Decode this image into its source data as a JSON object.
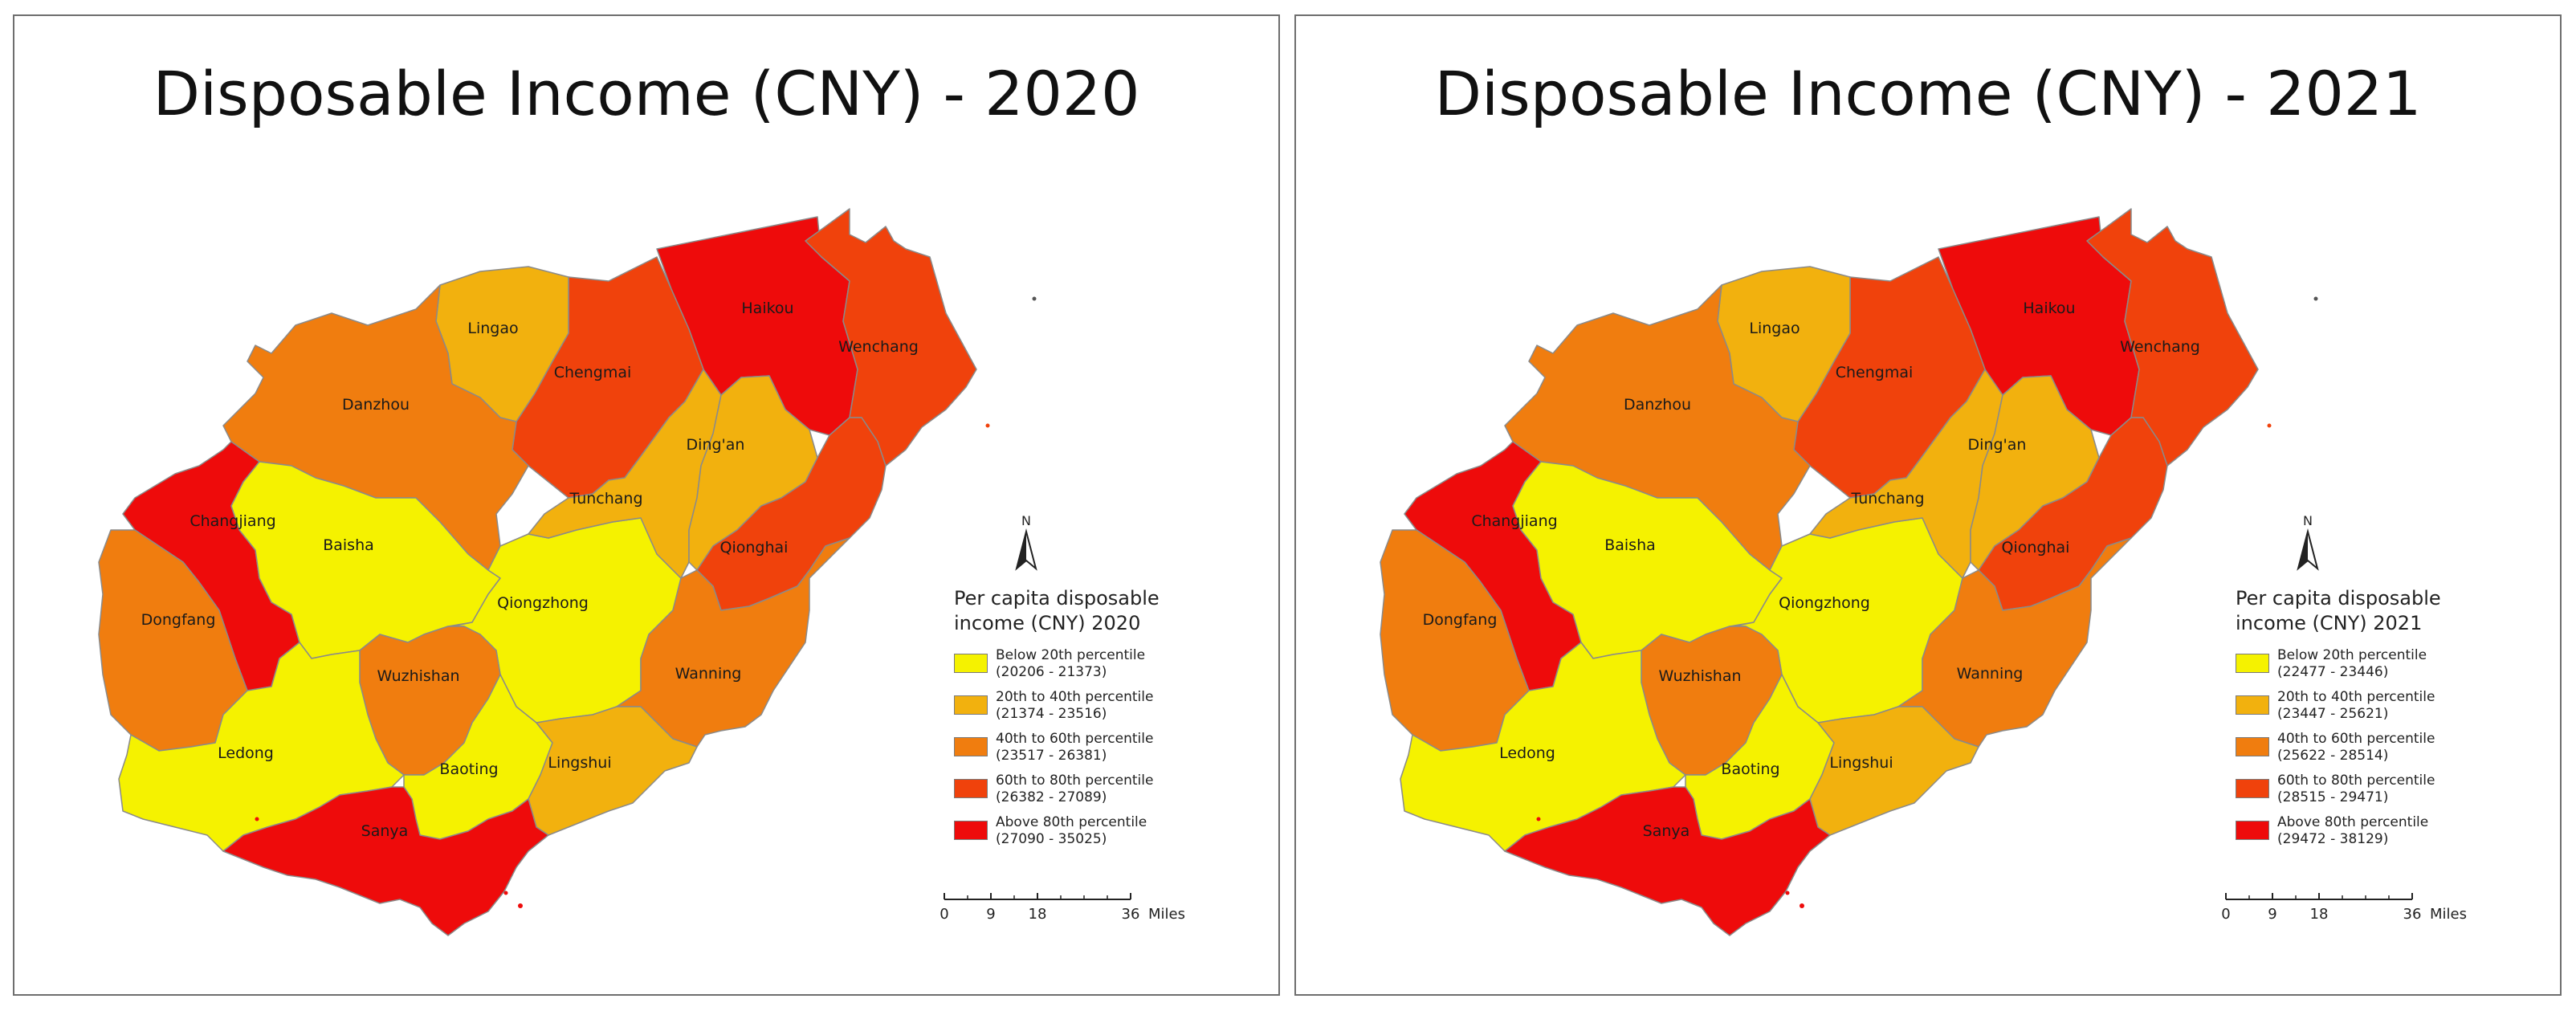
{
  "maps": [
    {
      "title": "Disposable Income (CNY) - 2020",
      "legend": {
        "title_line1": "Per capita disposable",
        "title_line2": "income (CNY) 2020",
        "classes": [
          {
            "label": "Below 20th percentile",
            "range": "(20206 - 21373)",
            "color": "#f5f200"
          },
          {
            "label": "20th to 40th percentile",
            "range": "(21374 - 23516)",
            "color": "#f2b10e"
          },
          {
            "label": "40th to 60th percentile",
            "range": "(23517 - 26381)",
            "color": "#f07d0f"
          },
          {
            "label": "60th to 80th percentile",
            "range": "(26382 - 27089)",
            "color": "#f0420c"
          },
          {
            "label": "Above 80th percentile",
            "range": "(27090 - 35025)",
            "color": "#ee0b0b"
          }
        ]
      },
      "regions": [
        {
          "name": "Haikou",
          "class": 4
        },
        {
          "name": "Wenchang",
          "class": 3
        },
        {
          "name": "Chengmai",
          "class": 3
        },
        {
          "name": "Lingao",
          "class": 1
        },
        {
          "name": "Danzhou",
          "class": 2
        },
        {
          "name": "Changjiang",
          "class": 4
        },
        {
          "name": "Baisha",
          "class": 0
        },
        {
          "name": "Qiongzhong",
          "class": 0
        },
        {
          "name": "Tunchang",
          "class": 1
        },
        {
          "name": "Ding'an",
          "class": 1
        },
        {
          "name": "Qionghai",
          "class": 3
        },
        {
          "name": "Dongfang",
          "class": 2
        },
        {
          "name": "Wuzhishan",
          "class": 2
        },
        {
          "name": "Wanning",
          "class": 2
        },
        {
          "name": "Ledong",
          "class": 0
        },
        {
          "name": "Baoting",
          "class": 0
        },
        {
          "name": "Lingshui",
          "class": 1
        },
        {
          "name": "Sanya",
          "class": 4
        }
      ],
      "north_label": "N",
      "scale": {
        "ticks": [
          "0",
          "9",
          "18",
          "36"
        ],
        "unit": "Miles"
      }
    },
    {
      "title": "Disposable Income (CNY) - 2021",
      "legend": {
        "title_line1": "Per capita disposable",
        "title_line2": "income (CNY) 2021",
        "classes": [
          {
            "label": "Below 20th percentile",
            "range": "(22477 - 23446)",
            "color": "#f5f200"
          },
          {
            "label": "20th to 40th percentile",
            "range": "(23447 - 25621)",
            "color": "#f2b10e"
          },
          {
            "label": "40th to 60th percentile",
            "range": "(25622 - 28514)",
            "color": "#f07d0f"
          },
          {
            "label": "60th to 80th percentile",
            "range": "(28515 - 29471)",
            "color": "#f0420c"
          },
          {
            "label": "Above 80th percentile",
            "range": "(29472 - 38129)",
            "color": "#ee0b0b"
          }
        ]
      },
      "regions": [
        {
          "name": "Haikou",
          "class": 4
        },
        {
          "name": "Wenchang",
          "class": 3
        },
        {
          "name": "Chengmai",
          "class": 3
        },
        {
          "name": "Lingao",
          "class": 1
        },
        {
          "name": "Danzhou",
          "class": 2
        },
        {
          "name": "Changjiang",
          "class": 4
        },
        {
          "name": "Baisha",
          "class": 0
        },
        {
          "name": "Qiongzhong",
          "class": 0
        },
        {
          "name": "Tunchang",
          "class": 1
        },
        {
          "name": "Ding'an",
          "class": 1
        },
        {
          "name": "Qionghai",
          "class": 3
        },
        {
          "name": "Dongfang",
          "class": 2
        },
        {
          "name": "Wuzhishan",
          "class": 2
        },
        {
          "name": "Wanning",
          "class": 2
        },
        {
          "name": "Ledong",
          "class": 0
        },
        {
          "name": "Baoting",
          "class": 0
        },
        {
          "name": "Lingshui",
          "class": 1
        },
        {
          "name": "Sanya",
          "class": 4
        }
      ],
      "north_label": "N",
      "scale": {
        "ticks": [
          "0",
          "9",
          "18",
          "36"
        ],
        "unit": "Miles"
      }
    }
  ]
}
